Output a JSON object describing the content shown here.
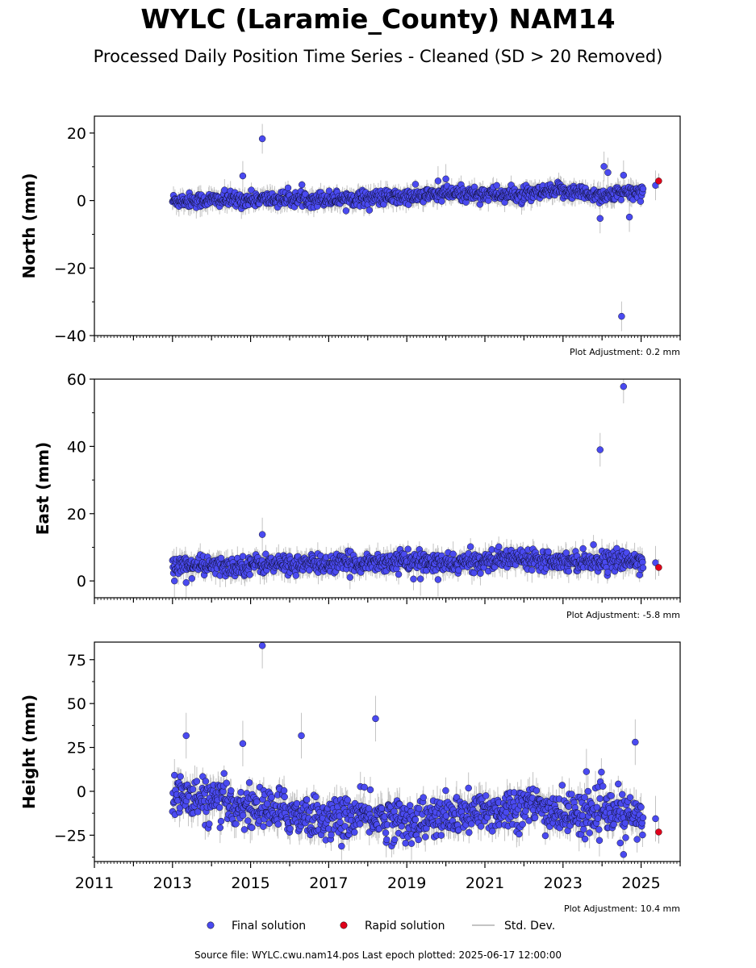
{
  "title": "WYLC (Laramie_County) NAM14",
  "subtitle": "Processed Daily Position Time Series - Cleaned (SD > 20 Removed)",
  "footer": "Source file: WYLC.cwu.nam14.pos  Last epoch plotted: 2025-06-17 12:00:00",
  "legend": {
    "final": "Final solution",
    "rapid": "Rapid solution",
    "std": "Std. Dev."
  },
  "colors": {
    "final": "#4a4af0",
    "rapid": "#e0001b",
    "std": "#b0b0b0"
  },
  "chart_data": [
    {
      "type": "scatter",
      "ylabel": "North (mm)",
      "adjustment": "Plot Adjustment: 0.2 mm",
      "xlim": [
        2011,
        2026
      ],
      "ylim": [
        -40,
        25
      ],
      "yticks": [
        -40,
        -20,
        0,
        20
      ],
      "xticks": [
        2011,
        2013,
        2015,
        2017,
        2019,
        2021,
        2023,
        2025
      ],
      "show_xtick_labels": false,
      "trend": [
        [
          2013.0,
          0.0
        ],
        [
          2015.0,
          0.3
        ],
        [
          2017.0,
          0.6
        ],
        [
          2019.0,
          1.0
        ],
        [
          2020.0,
          2.0
        ],
        [
          2021.0,
          2.0
        ],
        [
          2022.0,
          1.5
        ],
        [
          2023.0,
          3.0
        ],
        [
          2024.0,
          1.5
        ],
        [
          2025.0,
          2.5
        ]
      ],
      "noise": 1.1,
      "sd": 2.2,
      "outliers": [
        [
          2014.8,
          7.3
        ],
        [
          2015.3,
          18.3
        ],
        [
          2019.8,
          5.8
        ],
        [
          2020.0,
          6.4
        ],
        [
          2023.95,
          -5.3
        ],
        [
          2024.05,
          10.1
        ],
        [
          2024.15,
          8.3
        ],
        [
          2024.5,
          -34.3
        ],
        [
          2024.55,
          7.5
        ],
        [
          2024.7,
          -4.9
        ],
        [
          2025.37,
          4.5
        ]
      ],
      "rapid": [
        [
          2025.45,
          5.8
        ]
      ]
    },
    {
      "type": "scatter",
      "ylabel": "East (mm)",
      "adjustment": "Plot Adjustment: -5.8 mm",
      "xlim": [
        2011,
        2026
      ],
      "ylim": [
        -5,
        60
      ],
      "yticks": [
        0,
        20,
        40,
        60
      ],
      "xticks": [
        2011,
        2013,
        2015,
        2017,
        2019,
        2021,
        2023,
        2025
      ],
      "show_xtick_labels": false,
      "trend": [
        [
          2013.0,
          5.0
        ],
        [
          2014.5,
          4.0
        ],
        [
          2015.0,
          5.0
        ],
        [
          2016.0,
          5.0
        ],
        [
          2017.0,
          5.0
        ],
        [
          2018.0,
          5.5
        ],
        [
          2019.0,
          6.0
        ],
        [
          2020.0,
          5.0
        ],
        [
          2021.0,
          6.0
        ],
        [
          2022.0,
          7.0
        ],
        [
          2023.0,
          6.0
        ],
        [
          2024.0,
          6.0
        ],
        [
          2025.0,
          6.0
        ]
      ],
      "noise": 1.4,
      "sd": 2.5,
      "outliers": [
        [
          2013.05,
          0.0
        ],
        [
          2013.35,
          -0.5
        ],
        [
          2015.3,
          13.8
        ],
        [
          2019.35,
          0.6
        ],
        [
          2019.8,
          0.4
        ],
        [
          2023.95,
          39.0
        ],
        [
          2024.55,
          57.8
        ],
        [
          2025.37,
          5.4
        ]
      ],
      "rapid": [
        [
          2025.45,
          4.0
        ]
      ]
    },
    {
      "type": "scatter",
      "ylabel": "Height (mm)",
      "adjustment": "Plot Adjustment: 10.4 mm",
      "xlim": [
        2011,
        2026
      ],
      "ylim": [
        -40,
        85
      ],
      "yticks": [
        -25,
        0,
        25,
        50,
        75
      ],
      "xticks": [
        2011,
        2013,
        2015,
        2017,
        2019,
        2021,
        2023,
        2025
      ],
      "show_xtick_labels": true,
      "trend": [
        [
          2013.0,
          -2.0
        ],
        [
          2014.0,
          -6.0
        ],
        [
          2015.0,
          -9.0
        ],
        [
          2016.0,
          -12.0
        ],
        [
          2017.0,
          -16.0
        ],
        [
          2018.0,
          -14.0
        ],
        [
          2019.0,
          -17.0
        ],
        [
          2020.0,
          -15.0
        ],
        [
          2021.0,
          -12.0
        ],
        [
          2022.0,
          -8.0
        ],
        [
          2023.0,
          -13.0
        ],
        [
          2024.0,
          -12.0
        ],
        [
          2025.0,
          -15.0
        ]
      ],
      "noise": 6.0,
      "sd": 6.5,
      "outliers": [
        [
          2013.35,
          31.7
        ],
        [
          2014.8,
          27.2
        ],
        [
          2015.3,
          83.0
        ],
        [
          2016.3,
          31.7
        ],
        [
          2018.2,
          41.4
        ],
        [
          2023.6,
          11.2
        ],
        [
          2024.55,
          -36.0
        ],
        [
          2024.85,
          28.0
        ],
        [
          2025.37,
          -15.6
        ]
      ],
      "rapid": [
        [
          2025.45,
          -23.2
        ]
      ]
    }
  ]
}
